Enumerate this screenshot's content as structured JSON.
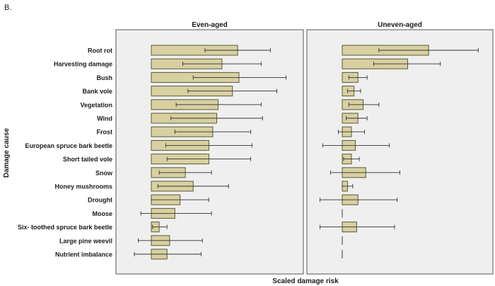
{
  "figure_label": "B.",
  "chart_data": {
    "type": "bar",
    "orientation": "horizontal",
    "ylabel": "Damage cause",
    "xlabel": "Scaled damage risk",
    "grid": false,
    "colors": {
      "panel_bg": "#efefef",
      "bar_fill": "#d8d0a0",
      "bar_stroke": "#5a5a3a",
      "error_bar": "#333333"
    },
    "categories": [
      "Root rot",
      "Harvesting damage",
      "Bush",
      "Bank vole",
      "Vegetation",
      "Wind",
      "Frost",
      "European spruce bark beetle",
      "Short tailed vole",
      "Snow",
      "Honey mushrooms",
      "Drought",
      "Moose",
      "Six- toothed spruce bark beetle",
      "Large pine weevil",
      "Nutrient imbalance"
    ],
    "panels": [
      {
        "title": "Even-aged",
        "values": [
          0.66,
          0.54,
          0.67,
          0.62,
          0.51,
          0.5,
          0.47,
          0.44,
          0.44,
          0.26,
          0.32,
          0.22,
          0.18,
          0.06,
          0.14,
          0.12
        ],
        "error_low": [
          0.41,
          0.24,
          0.32,
          0.28,
          0.19,
          0.15,
          0.18,
          0.11,
          0.12,
          0.06,
          0.05,
          0.0,
          -0.08,
          0.01,
          -0.1,
          -0.13
        ],
        "error_high": [
          0.91,
          0.84,
          1.03,
          0.96,
          0.84,
          0.85,
          0.76,
          0.77,
          0.76,
          0.46,
          0.59,
          0.44,
          0.46,
          0.12,
          0.39,
          0.38
        ]
      },
      {
        "title": "Uneven-aged",
        "values": [
          0.66,
          0.5,
          0.12,
          0.09,
          0.16,
          0.12,
          0.07,
          0.1,
          0.07,
          0.18,
          0.04,
          0.12,
          0.0,
          0.11,
          0.0,
          0.0
        ],
        "error_low": [
          0.28,
          0.24,
          0.05,
          0.04,
          0.05,
          0.03,
          -0.03,
          -0.15,
          0.01,
          -0.09,
          0.0,
          -0.17,
          0.0,
          -0.17,
          0.0,
          0.0
        ],
        "error_high": [
          1.04,
          0.75,
          0.19,
          0.14,
          0.28,
          0.19,
          0.17,
          0.36,
          0.13,
          0.44,
          0.08,
          0.42,
          0.0,
          0.4,
          0.0,
          0.0
        ]
      }
    ]
  }
}
